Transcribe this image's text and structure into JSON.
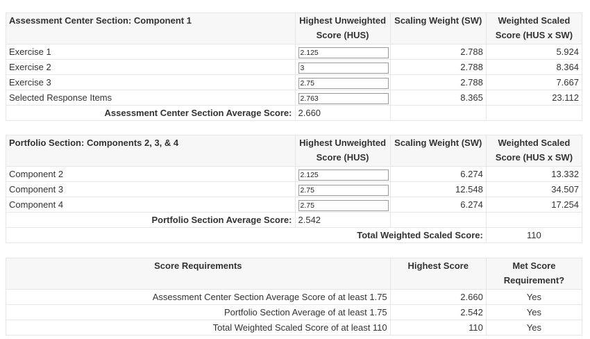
{
  "assessment": {
    "headers": [
      "Assessment Center Section: Component 1",
      "Highest Unweighted Score (HUS)",
      "Scaling Weight (SW)",
      "Weighted Scaled Score (HUS x SW)"
    ],
    "rows": [
      {
        "label": "Exercise 1",
        "hus": "2.125",
        "sw": "2.788",
        "wss": "5.924"
      },
      {
        "label": "Exercise 2",
        "hus": "3",
        "sw": "2.788",
        "wss": "8.364"
      },
      {
        "label": "Exercise 3",
        "hus": "2.75",
        "sw": "2.788",
        "wss": "7.667"
      },
      {
        "label": "Selected Response Items",
        "hus": "2.763",
        "sw": "8.365",
        "wss": "23.112"
      }
    ],
    "average_label": "Assessment Center Section Average Score:",
    "average_value": "2.660"
  },
  "portfolio": {
    "headers": [
      "Portfolio Section: Components 2, 3, & 4",
      "Highest Unweighted Score (HUS)",
      "Scaling Weight (SW)",
      "Weighted Scaled Score (HUS x SW)"
    ],
    "rows": [
      {
        "label": "Component 2",
        "hus": "2.125",
        "sw": "6.274",
        "wss": "13.332"
      },
      {
        "label": "Component 3",
        "hus": "2.75",
        "sw": "12.548",
        "wss": "34.507"
      },
      {
        "label": "Component 4",
        "hus": "2.75",
        "sw": "6.274",
        "wss": "17.254"
      }
    ],
    "average_label": "Portfolio Section Average Score:",
    "average_value": "2.542",
    "total_label": "Total Weighted Scaled Score:",
    "total_value": "110"
  },
  "requirements": {
    "headers": [
      "Score Requirements",
      "Highest Score",
      "Met Score Requirement?"
    ],
    "rows": [
      {
        "label": "Assessment Center Section Average Score of at least 1.75",
        "score": "2.660",
        "met": "Yes"
      },
      {
        "label": "Portfolio Section Average of at least 1.75",
        "score": "2.542",
        "met": "Yes"
      },
      {
        "label": "Total Weighted Scaled Score of at least 110",
        "score": "110",
        "met": "Yes"
      }
    ]
  }
}
